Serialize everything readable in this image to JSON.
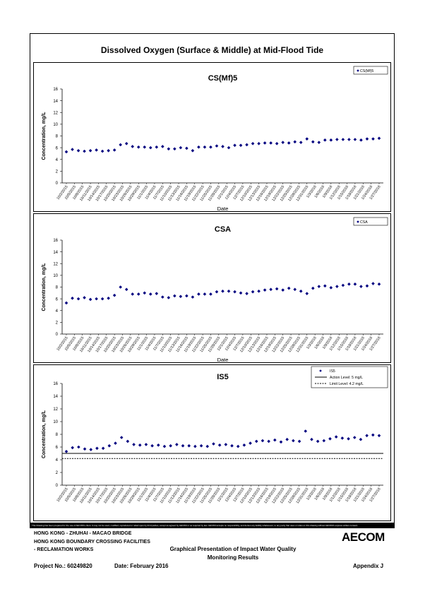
{
  "page": {
    "main_title": "Dissolved Oxygen (Surface & Middle) at Mid-Flood Tide",
    "disclaimer": "This Drawing has been prepared for the use of AECOM's client. It may not be used, modified, reproduced or relied upon by third parties, except as agreed by AECOM or as required by law. AECOM accepts no responsibility, and denies any liability whatsoever, to any party that uses or relies on this drawing without AECOM's express written consent.",
    "footer_line1": "HONG KONG - ZHUHAI - MACAO BRIDGE",
    "footer_line2": "HONG KONG BOUNDARY CROSSING FACILITIES",
    "footer_line3": "- RECLAMATION WORKS",
    "footer_title1": "Graphical Presentation of Impact Water Quality",
    "footer_title2": "Monitoring Results",
    "logo": "AECOM",
    "project_no": "Project No.: 60249820",
    "date": "Date: February 2016",
    "appendix": "Appendix J"
  },
  "colors": {
    "marker": "#000080",
    "axis": "#000000",
    "grid": "#000000"
  },
  "chart_data": [
    {
      "type": "scatter",
      "title": "CS(Mf)5",
      "xlabel": "Date",
      "ylabel": "Concentration, mg/L",
      "ylim": [
        0,
        16
      ],
      "yticks": [
        0,
        2,
        4,
        6,
        8,
        10,
        12,
        14,
        16
      ],
      "xticklabels": [
        "10/2/2015",
        "10/5/2015",
        "10/8/2015",
        "10/11/2015",
        "10/14/2015",
        "10/17/2015",
        "10/20/2015",
        "10/23/2015",
        "10/26/2015",
        "10/29/2015",
        "11/1/2015",
        "11/4/2015",
        "11/7/2015",
        "11/10/2015",
        "11/13/2015",
        "11/16/2015",
        "11/19/2015",
        "11/22/2015",
        "11/25/2015",
        "11/28/2015",
        "12/1/2015",
        "12/4/2015",
        "12/7/2015",
        "12/10/2015",
        "12/13/2015",
        "12/16/2015",
        "12/19/2015",
        "12/22/2015",
        "12/25/2015",
        "12/28/2015",
        "12/31/2015",
        "1/3/2016",
        "1/6/2016",
        "1/9/2016",
        "1/12/2016",
        "1/15/2016",
        "1/18/2016",
        "1/21/2016",
        "1/24/2016",
        "1/27/2016"
      ],
      "series": [
        {
          "name": "CS(Mf)5",
          "marker": "diamond",
          "values": [
            5.3,
            5.7,
            5.5,
            5.4,
            5.5,
            5.6,
            5.4,
            5.5,
            5.6,
            6.5,
            6.7,
            6.2,
            6.1,
            6.1,
            6.0,
            6.1,
            6.2,
            5.8,
            5.8,
            6.0,
            5.9,
            5.5,
            6.1,
            6.1,
            6.1,
            6.3,
            6.2,
            6.0,
            6.4,
            6.4,
            6.5,
            6.7,
            6.7,
            6.8,
            6.8,
            6.7,
            6.9,
            6.8,
            7.0,
            6.9,
            7.5,
            7.0,
            6.9,
            7.3,
            7.3,
            7.4,
            7.4,
            7.4,
            7.4,
            7.3,
            7.5,
            7.5,
            7.6
          ]
        }
      ],
      "legend": [
        "CS(Mf)5"
      ],
      "legend_position": "top-right",
      "grid": false
    },
    {
      "type": "scatter",
      "title": "CSA",
      "xlabel": "Date",
      "ylabel": "Concentration, mg/L",
      "ylim": [
        0,
        16
      ],
      "yticks": [
        0,
        2,
        4,
        6,
        8,
        10,
        12,
        14,
        16
      ],
      "xticklabels": [
        "10/2/2015",
        "10/5/2015",
        "10/8/2015",
        "10/11/2015",
        "10/14/2015",
        "10/17/2015",
        "10/20/2015",
        "10/23/2015",
        "10/26/2015",
        "10/29/2015",
        "11/1/2015",
        "11/4/2015",
        "11/7/2015",
        "11/10/2015",
        "11/13/2015",
        "11/16/2015",
        "11/19/2015",
        "11/22/2015",
        "11/25/2015",
        "11/28/2015",
        "12/1/2015",
        "12/4/2015",
        "12/7/2015",
        "12/10/2015",
        "12/13/2015",
        "12/16/2015",
        "12/19/2015",
        "12/22/2015",
        "12/25/2015",
        "12/28/2015",
        "12/31/2015",
        "1/3/2016",
        "1/6/2016",
        "1/9/2016",
        "1/12/2016",
        "1/15/2016",
        "1/18/2016",
        "1/21/2016",
        "1/24/2016",
        "1/27/2016"
      ],
      "series": [
        {
          "name": "CSA",
          "marker": "diamond",
          "values": [
            5.3,
            6.1,
            6.0,
            6.2,
            5.9,
            6.0,
            6.0,
            6.1,
            6.6,
            8.0,
            7.6,
            6.8,
            6.8,
            7.0,
            6.8,
            6.9,
            6.3,
            6.2,
            6.5,
            6.4,
            6.5,
            6.3,
            6.8,
            6.8,
            6.8,
            7.2,
            7.3,
            7.3,
            7.2,
            7.0,
            6.9,
            7.2,
            7.3,
            7.5,
            7.6,
            7.7,
            7.5,
            7.8,
            7.6,
            7.3,
            6.9,
            7.8,
            8.1,
            8.2,
            7.9,
            8.1,
            8.3,
            8.5,
            8.5,
            8.1,
            8.2,
            8.6,
            8.5
          ]
        }
      ],
      "legend": [
        "CSA"
      ],
      "legend_position": "top-right",
      "grid": false
    },
    {
      "type": "scatter",
      "title": "IS5",
      "xlabel": "",
      "ylabel": "Concentration, mg/L",
      "ylim": [
        0,
        16
      ],
      "yticks": [
        0,
        2,
        4,
        6,
        8,
        10,
        12,
        14,
        16
      ],
      "xticklabels": [
        "10/2/2015",
        "10/5/2015",
        "10/8/2015",
        "10/11/2015",
        "10/14/2015",
        "10/17/2015",
        "10/20/2015",
        "10/23/2015",
        "10/26/2015",
        "10/29/2015",
        "11/1/2015",
        "11/4/2015",
        "11/7/2015",
        "11/10/2015",
        "11/13/2015",
        "11/16/2015",
        "11/19/2015",
        "11/22/2015",
        "11/25/2015",
        "11/28/2015",
        "12/1/2015",
        "12/4/2015",
        "12/7/2015",
        "12/10/2015",
        "12/13/2015",
        "12/16/2015",
        "12/19/2015",
        "12/22/2015",
        "12/25/2015",
        "12/28/2015",
        "12/31/2015",
        "1/3/2016",
        "1/6/2016",
        "1/9/2016",
        "1/12/2016",
        "1/15/2016",
        "1/18/2016",
        "1/21/2016",
        "1/24/2016",
        "1/27/2016"
      ],
      "series": [
        {
          "name": "IS5",
          "marker": "diamond",
          "values": [
            5.3,
            5.9,
            6.0,
            5.7,
            5.6,
            5.8,
            5.8,
            6.2,
            6.6,
            7.5,
            6.9,
            6.4,
            6.3,
            6.4,
            6.2,
            6.3,
            6.1,
            6.2,
            6.4,
            6.2,
            6.2,
            6.1,
            6.2,
            6.1,
            6.5,
            6.3,
            6.4,
            6.2,
            6.1,
            6.3,
            6.6,
            6.9,
            7.0,
            6.9,
            7.1,
            6.8,
            7.2,
            7.0,
            6.9,
            8.5,
            7.2,
            6.9,
            7.0,
            7.3,
            7.6,
            7.4,
            7.3,
            7.5,
            7.2,
            7.8,
            7.9,
            7.8
          ]
        },
        {
          "name": "Action Level: 5 mg/L",
          "line": "solid",
          "value": 5
        },
        {
          "name": "Limit Level: 4.2 mg/L",
          "line": "dashed",
          "value": 4.2
        }
      ],
      "legend": [
        "IS5",
        "Action Level: 5 mg/L",
        "Limit Level: 4.2 mg/L"
      ],
      "legend_position": "top-right",
      "grid": false
    }
  ]
}
